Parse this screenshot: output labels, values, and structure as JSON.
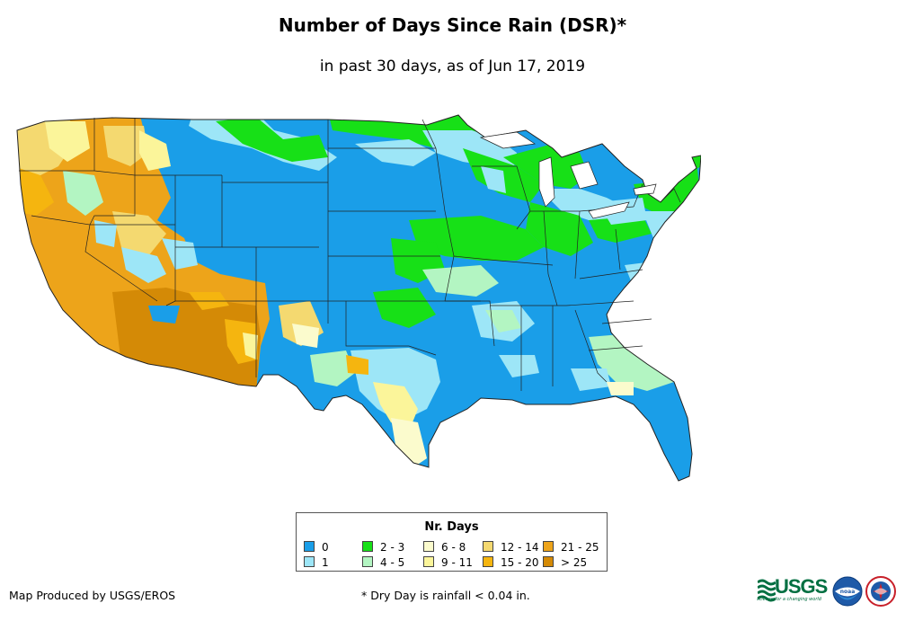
{
  "title": "Number of Days Since Rain (DSR)*",
  "subtitle": "in past 30 days, as of Jun 17, 2019",
  "legend": {
    "title": "Nr. Days",
    "items": [
      {
        "label": "0",
        "color": "#1a9ee8"
      },
      {
        "label": "1",
        "color": "#9de6f7"
      },
      {
        "label": "2 - 3",
        "color": "#17e017"
      },
      {
        "label": "4 - 5",
        "color": "#b3f5c2"
      },
      {
        "label": "6 - 8",
        "color": "#fbfbcd"
      },
      {
        "label": "9 - 11",
        "color": "#fbf59a"
      },
      {
        "label": "12 - 14",
        "color": "#f4d970"
      },
      {
        "label": "15 - 20",
        "color": "#f5b50f"
      },
      {
        "label": "21 - 25",
        "color": "#eda41a"
      },
      {
        "label": "> 25",
        "color": "#d48a06"
      }
    ]
  },
  "footer": {
    "credit": "Map Produced by USGS/EROS",
    "note": "* Dry Day is rainfall < 0.04 in."
  },
  "logos": {
    "usgs": "USGS",
    "usgs_tagline": "science for a changing world",
    "noaa": "noaa"
  }
}
